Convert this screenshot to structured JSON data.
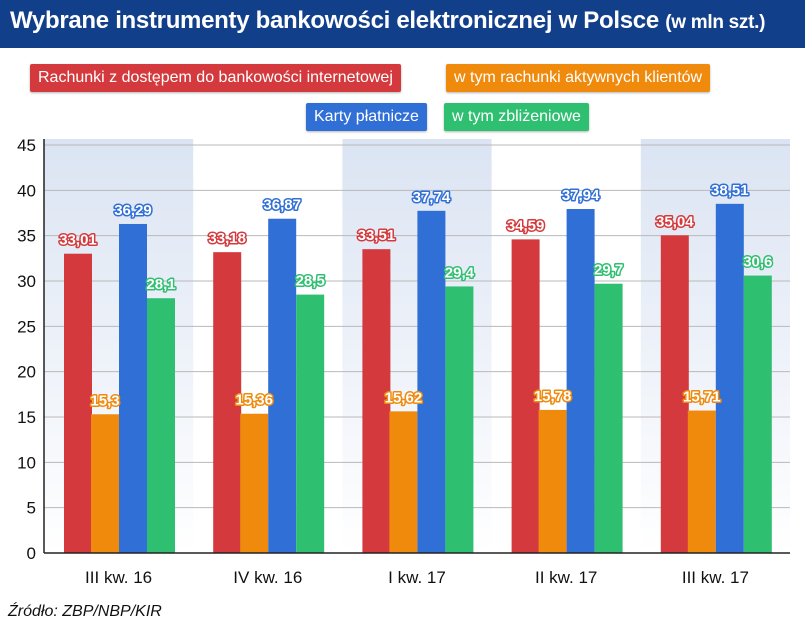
{
  "header": {
    "title": "Wybrane instrumenty bankowości elektronicznej w Polsce",
    "subtitle": "(w mln szt.)",
    "background": "#123f8a"
  },
  "source": "Źródło: ZBP/NBP/KIR",
  "chart_data": {
    "type": "bar",
    "title": "Wybrane instrumenty bankowości elektronicznej w Polsce (w mln szt.)",
    "categories": [
      "III kw. 16",
      "IV kw. 16",
      "I kw. 17",
      "II kw. 17",
      "III kw. 17"
    ],
    "series": [
      {
        "name": "Rachunki z dostępem do bankowości internetowej",
        "color": "#d43a3d",
        "values": [
          33.01,
          33.18,
          33.51,
          34.59,
          35.04
        ],
        "labels": [
          "33,01",
          "33,18",
          "33,51",
          "34,59",
          "35,04"
        ]
      },
      {
        "name": "w tym rachunki aktywnych klientów",
        "color": "#ef8a0c",
        "values": [
          15.3,
          15.36,
          15.62,
          15.78,
          15.71
        ],
        "labels": [
          "15,3",
          "15,36",
          "15,62",
          "15,78",
          "15,71"
        ]
      },
      {
        "name": "Karty płatnicze",
        "color": "#2f6fd6",
        "values": [
          36.29,
          36.87,
          37.74,
          37.94,
          38.51
        ],
        "labels": [
          "36,29",
          "36,87",
          "37,74",
          "37,94",
          "38,51"
        ]
      },
      {
        "name": "w tym zbliżeniowe",
        "color": "#2fbf71",
        "values": [
          28.1,
          28.5,
          29.4,
          29.7,
          30.6
        ],
        "labels": [
          "28,1",
          "28,5",
          "29,4",
          "29,7",
          "30,6"
        ]
      }
    ],
    "y_ticks": [
      "0",
      "5",
      "10",
      "15",
      "20",
      "25",
      "30",
      "35",
      "40",
      "45"
    ],
    "ylim": [
      0,
      45
    ],
    "grid": true,
    "xlabel": "",
    "ylabel": "",
    "legend_position": "top"
  }
}
